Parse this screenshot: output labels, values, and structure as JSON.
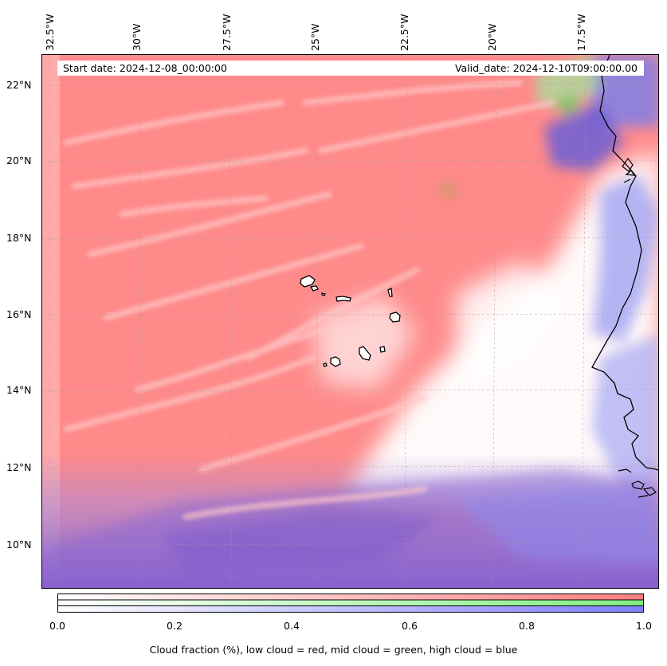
{
  "map": {
    "start_date": "Start date: 2024-12-08_00:00:00",
    "valid_date": "Valid_date: 2024-12-10T09:00:00.00",
    "lon_labels": [
      "32.5°W",
      "30°W",
      "27.5°W",
      "25°W",
      "22.5°W",
      "20°W",
      "17.5°W"
    ],
    "lat_labels": [
      "22°N",
      "20°N",
      "18°N",
      "16°N",
      "14°N",
      "12°N",
      "10°N"
    ],
    "colors": {
      "low_cloud": "#ff8080",
      "mid_cloud": "#80ee80",
      "high_cloud": "#8080ff",
      "overlap_low_high": "#9966cc",
      "coastline": "#000000"
    }
  },
  "colorbar": {
    "ticks": [
      "0.0",
      "0.2",
      "0.4",
      "0.6",
      "0.8",
      "1.0"
    ],
    "label": "Cloud fraction (%), low cloud = red, mid cloud = green, high cloud = blue"
  }
}
